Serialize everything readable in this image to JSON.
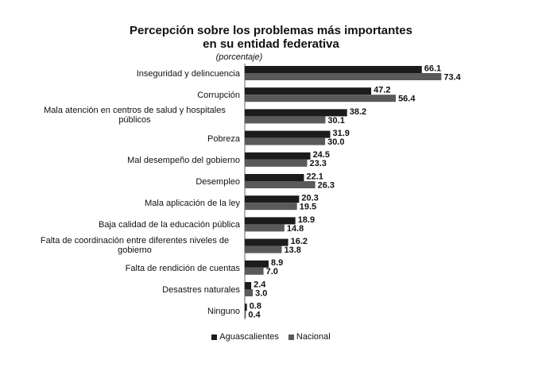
{
  "chart_data": {
    "type": "bar",
    "title": [
      "Percepción sobre los problemas más importantes",
      "en su entidad federativa"
    ],
    "subtitle": "(porcentaje)",
    "categories": [
      "Inseguridad y delincuencia",
      "Corrupción",
      "Mala atención en centros de salud y hospitales públicos",
      "Pobreza",
      "Mal desempeño del gobierno",
      "Desempleo",
      "Mala aplicación de la ley",
      "Baja calidad de la educación pública",
      "Falta de coordinación entre diferentes niveles de gobierno",
      "Falta de rendición de cuentas",
      "Desastres naturales",
      "Ninguno"
    ],
    "series": [
      {
        "name": "Aguascalientes",
        "color": "#1c1c1c",
        "values": [
          66.1,
          47.2,
          38.2,
          31.9,
          24.5,
          22.1,
          20.3,
          18.9,
          16.2,
          8.9,
          2.4,
          0.8
        ],
        "value_labels": [
          "66.1",
          "47.2",
          "38.2",
          "31.9",
          "24.5",
          "22.1",
          "20.3",
          "18.9",
          "16.2",
          "8.9",
          "2.4",
          "0.8"
        ]
      },
      {
        "name": "Nacional",
        "color": "#5a5a5a",
        "values": [
          73.4,
          56.4,
          30.1,
          30.0,
          23.3,
          26.3,
          19.5,
          14.8,
          13.8,
          7.0,
          3.0,
          0.4
        ],
        "value_labels": [
          "73.4",
          "56.4",
          "30.1",
          "30.0",
          "23.3",
          "26.3",
          "19.5",
          "14.8",
          "13.8",
          "7.0",
          "3.0",
          "0.4"
        ]
      }
    ]
  }
}
